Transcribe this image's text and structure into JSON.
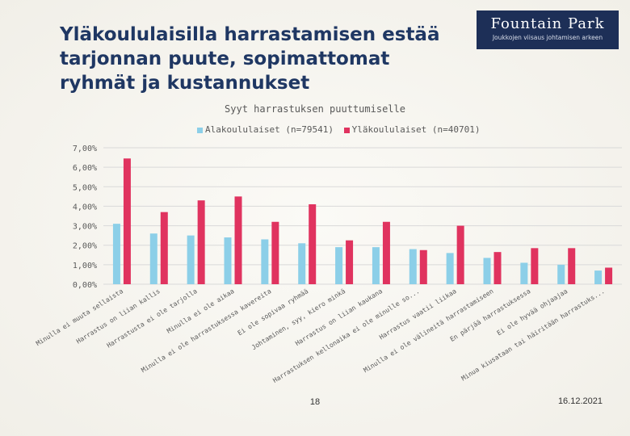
{
  "slide": {
    "title_lines": [
      "Yläkoululaisilla harrastamisen estää",
      "tarjonnan puute, sopimattomat",
      "ryhmät ja kustannukset"
    ],
    "page_number": "18",
    "date": "16.12.2021"
  },
  "logo": {
    "name": "Fountain Park",
    "tagline": "Joukkojen viisaus johtamisen arkeen",
    "bg_color": "#1d2f57"
  },
  "chart_data": {
    "type": "bar",
    "title": "Syyt harrastuksen puuttumiselle",
    "xlabel": "",
    "ylabel": "",
    "ylim": [
      0,
      7
    ],
    "y_ticks": [
      "0,00%",
      "1,00%",
      "2,00%",
      "3,00%",
      "4,00%",
      "5,00%",
      "6,00%",
      "7,00%"
    ],
    "grid": true,
    "legend_position": "top",
    "categories": [
      "Minulla ei muuta sellaista",
      "Harrastus on liian kallis",
      "Harrastusta ei ole tarjolla",
      "Minulla ei ole aikaa",
      "Minulla ei ole harrastuksessa kavereita",
      "Ei ole sopivaa ryhmää",
      "Johtaminen, syy, kiero minkä",
      "Harrastus on liian kaukana",
      "Harrastuksen kellonaika ei ole minulle so...",
      "Harrastus vaatii liikaa",
      "Minulla ei ole välineitä harrastamiseen",
      "En pärjää harrastuksessa",
      "Ei ole hyvää ohjaajaa",
      "Minua kiusataan tai häiritään harrastuks..."
    ],
    "series": [
      {
        "name": "Alakoululaiset (n=79541)",
        "color": "#8ccfe8",
        "values": [
          3.1,
          2.6,
          2.5,
          2.4,
          2.3,
          2.1,
          1.9,
          1.9,
          1.8,
          1.6,
          1.35,
          1.1,
          1.0,
          0.7
        ]
      },
      {
        "name": "Yläkoululaiset (n=40701)",
        "color": "#e0335f",
        "values": [
          6.45,
          3.7,
          4.3,
          4.5,
          3.2,
          4.1,
          2.25,
          3.2,
          1.75,
          3.0,
          1.65,
          1.85,
          1.85,
          0.85
        ]
      }
    ]
  }
}
